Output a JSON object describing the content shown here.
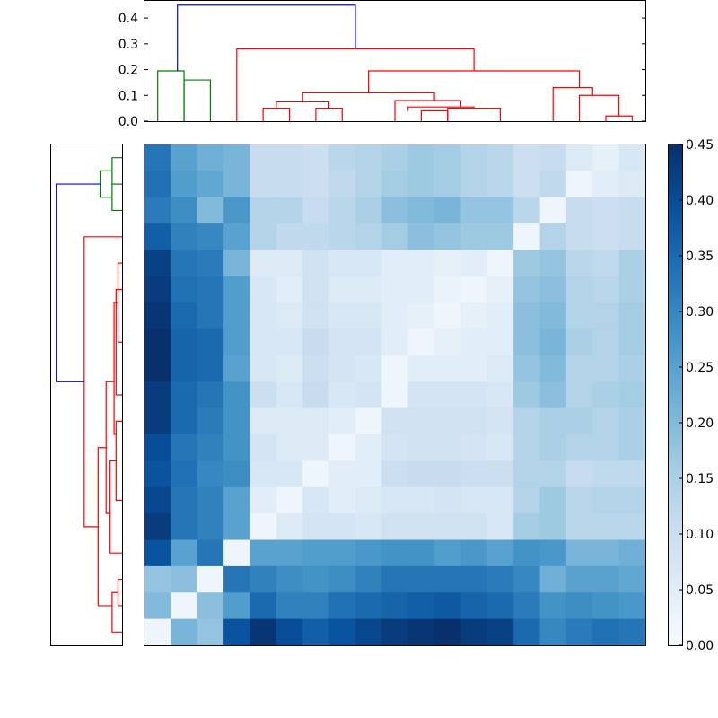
{
  "chart_data": {
    "type": "heatmap",
    "title": "",
    "colormap": "Blues",
    "color_range": [
      0.0,
      0.45
    ],
    "colorbar_ticks": [
      "0.00",
      "0.05",
      "0.10",
      "0.15",
      "0.20",
      "0.25",
      "0.30",
      "0.35",
      "0.40",
      "0.45"
    ],
    "colorbar_tick_values": [
      0.0,
      0.05,
      0.1,
      0.15,
      0.2,
      0.25,
      0.3,
      0.35,
      0.4,
      0.45
    ],
    "dendrogram_axis_ticks": [
      "0.0",
      "0.1",
      "0.2",
      "0.3",
      "0.4"
    ],
    "dendrogram_axis_tick_values": [
      0.0,
      0.1,
      0.2,
      0.3,
      0.4
    ],
    "dendrogram_ylim": [
      0,
      0.47
    ],
    "cluster_colors": {
      "green": "#008000",
      "red": "#ff0000",
      "blue": "#0000ff"
    },
    "matrix": [
      [
        0.33,
        0.25,
        0.22,
        0.21,
        0.11,
        0.11,
        0.1,
        0.13,
        0.14,
        0.15,
        0.17,
        0.16,
        0.14,
        0.13,
        0.1,
        0.11,
        0.06,
        0.04,
        0.07
      ],
      [
        0.34,
        0.26,
        0.24,
        0.21,
        0.11,
        0.11,
        0.1,
        0.12,
        0.14,
        0.16,
        0.17,
        0.16,
        0.14,
        0.13,
        0.1,
        0.12,
        0.02,
        0.05,
        0.06
      ],
      [
        0.32,
        0.29,
        0.2,
        0.27,
        0.14,
        0.14,
        0.11,
        0.13,
        0.15,
        0.19,
        0.2,
        0.21,
        0.18,
        0.18,
        0.13,
        0.02,
        0.11,
        0.1,
        0.11
      ],
      [
        0.37,
        0.31,
        0.3,
        0.25,
        0.14,
        0.12,
        0.12,
        0.13,
        0.14,
        0.16,
        0.19,
        0.18,
        0.17,
        0.17,
        0.02,
        0.14,
        0.11,
        0.1,
        0.11
      ],
      [
        0.42,
        0.33,
        0.32,
        0.21,
        0.06,
        0.06,
        0.09,
        0.07,
        0.07,
        0.05,
        0.05,
        0.04,
        0.05,
        0.02,
        0.17,
        0.18,
        0.13,
        0.12,
        0.15
      ],
      [
        0.43,
        0.34,
        0.33,
        0.26,
        0.07,
        0.05,
        0.09,
        0.06,
        0.06,
        0.05,
        0.05,
        0.03,
        0.02,
        0.04,
        0.18,
        0.19,
        0.14,
        0.13,
        0.15
      ],
      [
        0.44,
        0.35,
        0.33,
        0.26,
        0.07,
        0.06,
        0.09,
        0.07,
        0.07,
        0.05,
        0.04,
        0.02,
        0.04,
        0.05,
        0.19,
        0.2,
        0.14,
        0.14,
        0.16
      ],
      [
        0.45,
        0.36,
        0.35,
        0.26,
        0.07,
        0.07,
        0.11,
        0.08,
        0.08,
        0.05,
        0.02,
        0.04,
        0.05,
        0.05,
        0.19,
        0.21,
        0.15,
        0.14,
        0.16
      ],
      [
        0.45,
        0.36,
        0.35,
        0.25,
        0.07,
        0.06,
        0.1,
        0.08,
        0.07,
        0.02,
        0.05,
        0.05,
        0.05,
        0.06,
        0.18,
        0.2,
        0.14,
        0.14,
        0.15
      ],
      [
        0.43,
        0.35,
        0.33,
        0.28,
        0.1,
        0.07,
        0.11,
        0.07,
        0.08,
        0.02,
        0.08,
        0.08,
        0.08,
        0.07,
        0.17,
        0.19,
        0.14,
        0.15,
        0.16
      ],
      [
        0.43,
        0.35,
        0.32,
        0.28,
        0.06,
        0.06,
        0.06,
        0.05,
        0.02,
        0.09,
        0.09,
        0.09,
        0.09,
        0.08,
        0.14,
        0.15,
        0.15,
        0.14,
        0.15
      ],
      [
        0.4,
        0.33,
        0.31,
        0.28,
        0.08,
        0.06,
        0.06,
        0.02,
        0.05,
        0.08,
        0.09,
        0.09,
        0.08,
        0.07,
        0.14,
        0.15,
        0.14,
        0.14,
        0.15
      ],
      [
        0.39,
        0.34,
        0.3,
        0.29,
        0.07,
        0.07,
        0.02,
        0.05,
        0.05,
        0.1,
        0.11,
        0.11,
        0.1,
        0.1,
        0.14,
        0.14,
        0.11,
        0.12,
        0.12
      ],
      [
        0.41,
        0.33,
        0.31,
        0.25,
        0.05,
        0.02,
        0.07,
        0.05,
        0.06,
        0.07,
        0.07,
        0.08,
        0.07,
        0.07,
        0.14,
        0.17,
        0.13,
        0.14,
        0.14
      ],
      [
        0.43,
        0.33,
        0.31,
        0.25,
        0.02,
        0.06,
        0.08,
        0.08,
        0.07,
        0.09,
        0.09,
        0.09,
        0.09,
        0.07,
        0.16,
        0.17,
        0.13,
        0.13,
        0.13
      ],
      [
        0.39,
        0.25,
        0.33,
        0.02,
        0.25,
        0.25,
        0.26,
        0.26,
        0.27,
        0.28,
        0.28,
        0.26,
        0.27,
        0.25,
        0.28,
        0.27,
        0.21,
        0.21,
        0.22
      ],
      [
        0.18,
        0.19,
        0.02,
        0.33,
        0.31,
        0.29,
        0.28,
        0.29,
        0.31,
        0.33,
        0.33,
        0.33,
        0.33,
        0.32,
        0.3,
        0.22,
        0.25,
        0.25,
        0.24
      ],
      [
        0.2,
        0.02,
        0.19,
        0.26,
        0.35,
        0.31,
        0.31,
        0.34,
        0.35,
        0.36,
        0.37,
        0.38,
        0.36,
        0.35,
        0.32,
        0.28,
        0.29,
        0.28,
        0.27
      ],
      [
        0.02,
        0.21,
        0.18,
        0.39,
        0.44,
        0.4,
        0.37,
        0.39,
        0.41,
        0.43,
        0.44,
        0.45,
        0.43,
        0.42,
        0.35,
        0.3,
        0.32,
        0.34,
        0.33
      ]
    ],
    "top_dendrogram": [
      {
        "color": "green",
        "x": [
          0.5,
          0.5,
          1.5,
          1.5
        ],
        "y": [
          0.0,
          0.195,
          0.195,
          0.0
        ]
      },
      {
        "color": "green",
        "x": [
          1.5,
          1.5,
          2.5,
          2.5
        ],
        "y": [
          0.0,
          0.16,
          0.16,
          0.0
        ]
      },
      {
        "color": "red",
        "x": [
          4.5,
          4.5,
          5.5,
          5.5
        ],
        "y": [
          0.0,
          0.05,
          0.05,
          0.0
        ]
      },
      {
        "color": "red",
        "x": [
          6.5,
          6.5,
          7.5,
          7.5
        ],
        "y": [
          0.0,
          0.05,
          0.05,
          0.0
        ]
      },
      {
        "color": "red",
        "x": [
          5.0,
          5.0,
          7.0,
          7.0
        ],
        "y": [
          0.05,
          0.075,
          0.075,
          0.05
        ]
      },
      {
        "color": "red",
        "x": [
          10.5,
          10.5,
          11.5,
          11.5
        ],
        "y": [
          0.0,
          0.04,
          0.04,
          0.0
        ]
      },
      {
        "color": "red",
        "x": [
          11.5,
          11.5,
          13.5,
          13.5
        ],
        "y": [
          0.0,
          0.05,
          0.05,
          0.0
        ]
      },
      {
        "color": "red",
        "x": [
          10.0,
          10.0,
          12.5,
          12.5
        ],
        "y": [
          0.04,
          0.055,
          0.055,
          0.05
        ]
      },
      {
        "color": "red",
        "x": [
          9.5,
          9.5,
          12.0,
          12.0
        ],
        "y": [
          0.0,
          0.08,
          0.08,
          0.055
        ]
      },
      {
        "color": "red",
        "x": [
          6.0,
          6.0,
          11.0,
          11.0
        ],
        "y": [
          0.075,
          0.11,
          0.11,
          0.08
        ]
      },
      {
        "color": "red",
        "x": [
          16.5,
          16.5,
          18.0,
          18.0
        ],
        "y": [
          0.0,
          0.1,
          0.1,
          0.02
        ]
      },
      {
        "color": "red",
        "x": [
          17.5,
          17.5,
          18.5,
          18.5
        ],
        "y": [
          0.0,
          0.02,
          0.02,
          0.0
        ]
      },
      {
        "color": "red",
        "x": [
          15.5,
          15.5,
          17.0,
          17.0
        ],
        "y": [
          0.0,
          0.13,
          0.13,
          0.1
        ]
      },
      {
        "color": "red",
        "x": [
          8.5,
          8.5,
          16.5,
          16.5
        ],
        "y": [
          0.11,
          0.195,
          0.195,
          0.13
        ]
      },
      {
        "color": "red",
        "x": [
          3.5,
          3.5,
          12.5,
          12.5
        ],
        "y": [
          0.0,
          0.28,
          0.28,
          0.195
        ]
      },
      {
        "color": "blue",
        "x": [
          1.25,
          1.25,
          8.0,
          8.0
        ],
        "y": [
          0.195,
          0.45,
          0.45,
          0.28
        ]
      }
    ],
    "left_dendrogram": [
      {
        "color": "green",
        "y": [
          0.5,
          0.5,
          1.5,
          1.5
        ],
        "x": [
          0.0,
          0.05,
          0.05,
          0.0
        ]
      },
      {
        "color": "green",
        "y": [
          1.5,
          1.5,
          2.5,
          2.5
        ],
        "x": [
          0.0,
          0.05,
          0.05,
          0.0
        ]
      },
      {
        "color": "green",
        "y": [
          1.0,
          1.0,
          2.0,
          2.0
        ],
        "x": [
          0.05,
          0.11,
          0.11,
          0.05
        ]
      },
      {
        "color": "red",
        "y": [
          4.5,
          4.5,
          7.5,
          7.5
        ],
        "x": [
          0.0,
          0.02,
          0.02,
          0.0
        ]
      },
      {
        "color": "red",
        "y": [
          5.5,
          5.5,
          9.5,
          9.5
        ],
        "x": [
          0.0,
          0.03,
          0.03,
          0.0
        ]
      },
      {
        "color": "red",
        "y": [
          6.0,
          6.0,
          11.0,
          11.0
        ],
        "x": [
          0.02,
          0.04,
          0.04,
          0.03
        ]
      },
      {
        "color": "red",
        "y": [
          10.5,
          10.5,
          13.5,
          13.5
        ],
        "x": [
          0.0,
          0.03,
          0.03,
          0.0
        ]
      },
      {
        "color": "red",
        "y": [
          12.0,
          12.0,
          15.5,
          15.5
        ],
        "x": [
          0.03,
          0.06,
          0.06,
          0.0
        ]
      },
      {
        "color": "red",
        "y": [
          9.0,
          9.0,
          14.0,
          14.0
        ],
        "x": [
          0.04,
          0.08,
          0.08,
          0.06
        ]
      },
      {
        "color": "red",
        "y": [
          16.5,
          16.5,
          17.5,
          17.5
        ],
        "x": [
          0.0,
          0.02,
          0.02,
          0.0
        ]
      },
      {
        "color": "red",
        "y": [
          17.0,
          17.0,
          18.5,
          18.5
        ],
        "x": [
          0.02,
          0.05,
          0.05,
          0.0
        ]
      },
      {
        "color": "red",
        "y": [
          11.5,
          11.5,
          17.5,
          17.5
        ],
        "x": [
          0.08,
          0.12,
          0.12,
          0.05
        ]
      },
      {
        "color": "red",
        "y": [
          3.5,
          3.5,
          14.5,
          14.5
        ],
        "x": [
          0.0,
          0.19,
          0.19,
          0.12
        ]
      },
      {
        "color": "blue",
        "y": [
          1.5,
          1.5,
          9.0,
          9.0
        ],
        "x": [
          0.11,
          0.33,
          0.33,
          0.19
        ]
      }
    ]
  }
}
